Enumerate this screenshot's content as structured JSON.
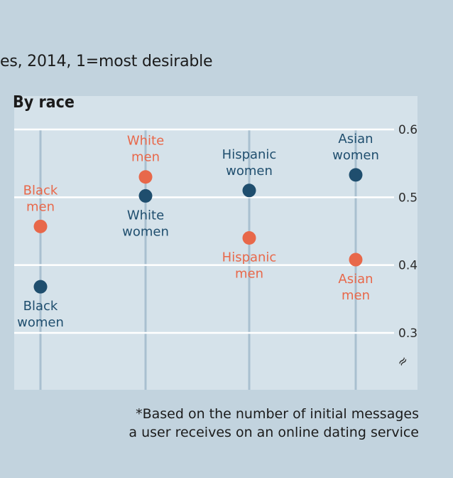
{
  "subtitle": "es, 2014, 1=most desirable",
  "footnote": {
    "line1": "*Based on the number of initial messages",
    "line2": "a user receives on an online dating service"
  },
  "colors": {
    "men": "#e8684a",
    "women": "#1f4e6e",
    "panel": "#d5e2ea",
    "grid": "#ffffff",
    "column_line": "#a9c0d0"
  },
  "chart_data": {
    "type": "scatter",
    "title": "By race",
    "ylim": [
      0.3,
      0.6
    ],
    "yticks": [
      0.6,
      0.5,
      0.4,
      0.3
    ],
    "ytick_labels": [
      "0.6",
      "0.5",
      "0.4",
      "0.3"
    ],
    "axis_break_symbol": "≈",
    "categories": [
      "Black",
      "White",
      "Hispanic",
      "Asian"
    ],
    "series": [
      {
        "name": "men",
        "values": [
          0.457,
          0.53,
          0.44,
          0.408
        ],
        "labels": [
          [
            "Black",
            "men"
          ],
          [
            "White",
            "men"
          ],
          [
            "Hispanic",
            "men"
          ],
          [
            "Asian",
            "men"
          ]
        ],
        "label_position": [
          "above",
          "above",
          "below",
          "below"
        ]
      },
      {
        "name": "women",
        "values": [
          0.368,
          0.502,
          0.51,
          0.533
        ],
        "labels": [
          [
            "Black",
            "women"
          ],
          [
            "White",
            "women"
          ],
          [
            "Hispanic",
            "women"
          ],
          [
            "Asian",
            "women"
          ]
        ],
        "label_position": [
          "below",
          "below",
          "above",
          "above"
        ]
      }
    ]
  }
}
